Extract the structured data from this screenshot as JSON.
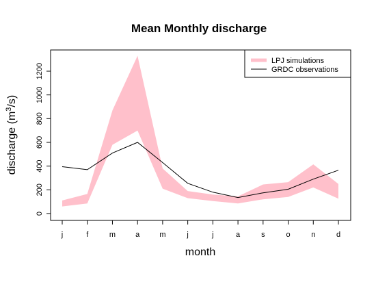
{
  "chart_data": {
    "type": "area",
    "title": "Mean Monthly discharge",
    "xlabel": "month",
    "ylabel": {
      "prefix": "discharge (m",
      "sup": "3",
      "suffix": "/s)"
    },
    "categories": [
      "j",
      "f",
      "m",
      "a",
      "m",
      "j",
      "j",
      "a",
      "s",
      "o",
      "n",
      "d"
    ],
    "ylim": [
      0,
      1400
    ],
    "yticks": [
      0,
      200,
      400,
      600,
      800,
      1000,
      1200
    ],
    "series": [
      {
        "name": "LPJ simulations",
        "kind": "band",
        "color": "#ffc0cb",
        "lower": [
          60,
          85,
          580,
          700,
          210,
          130,
          105,
          85,
          120,
          140,
          220,
          125
        ],
        "upper": [
          110,
          165,
          870,
          1330,
          380,
          190,
          160,
          145,
          245,
          265,
          415,
          250
        ]
      },
      {
        "name": "GRDC observations",
        "kind": "line",
        "color": "#000000",
        "values": [
          395,
          370,
          510,
          600,
          430,
          255,
          180,
          135,
          175,
          205,
          290,
          365
        ]
      }
    ],
    "legend": "top-right",
    "grid": false
  }
}
